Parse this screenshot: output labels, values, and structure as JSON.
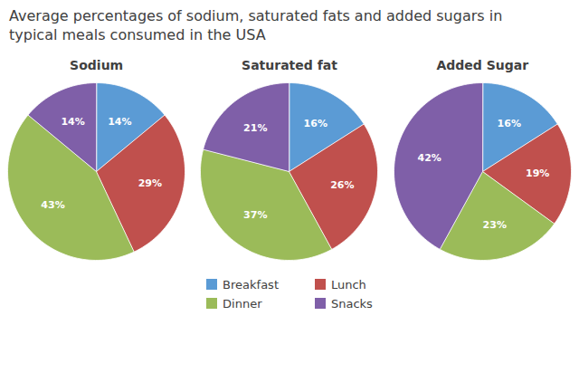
{
  "title": "Average percentages of sodium, saturated fats and added sugars in\ntypical meals consumed in the USA",
  "chart_data": [
    {
      "type": "pie",
      "title": "Sodium",
      "categories": [
        "Breakfast",
        "Lunch",
        "Dinner",
        "Snacks"
      ],
      "values": [
        14,
        29,
        43,
        14
      ],
      "value_labels": [
        "14%",
        "29%",
        "43%",
        "14%"
      ],
      "colors": [
        "#5b9bd5",
        "#c0504d",
        "#9bbb59",
        "#7f5fa8"
      ],
      "data_labels": true,
      "legend": "bottom"
    },
    {
      "type": "pie",
      "title": "Saturated fat",
      "categories": [
        "Breakfast",
        "Lunch",
        "Dinner",
        "Snacks"
      ],
      "values": [
        16,
        26,
        37,
        21
      ],
      "value_labels": [
        "16%",
        "26%",
        "37%",
        "21%"
      ],
      "colors": [
        "#5b9bd5",
        "#c0504d",
        "#9bbb59",
        "#7f5fa8"
      ],
      "data_labels": true,
      "legend": "bottom"
    },
    {
      "type": "pie",
      "title": "Added Sugar",
      "categories": [
        "Breakfast",
        "Lunch",
        "Dinner",
        "Snacks"
      ],
      "values": [
        16,
        19,
        23,
        42
      ],
      "value_labels": [
        "16%",
        "19%",
        "23%",
        "42%"
      ],
      "colors": [
        "#5b9bd5",
        "#c0504d",
        "#9bbb59",
        "#7f5fa8"
      ],
      "data_labels": true,
      "legend": "bottom"
    }
  ]
}
